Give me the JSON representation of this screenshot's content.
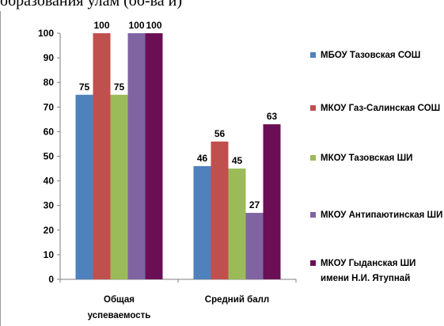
{
  "top_text": "образования                                    улам (об-ва и)",
  "chart_data": {
    "type": "bar",
    "categories": [
      "Общая успеваемость",
      "Средний балл"
    ],
    "category_lines": [
      [
        "Общая",
        "успеваемость"
      ],
      [
        "Средний балл"
      ]
    ],
    "series": [
      {
        "name": "МБОУ Тазовская СОШ",
        "values": [
          75,
          46
        ],
        "color": "#4f81bd"
      },
      {
        "name": "МКОУ Газ-Салинская СОШ",
        "values": [
          100,
          56
        ],
        "color": "#c0504d"
      },
      {
        "name": "МКОУ Тазовская ШИ",
        "values": [
          75,
          45
        ],
        "color": "#9bbb59"
      },
      {
        "name": "МКОУ Антипаютинская ШИ",
        "values": [
          100,
          27
        ],
        "color": "#8064a2"
      },
      {
        "name": "МКОУ Гыданская ШИ имени Н.И. Ятупнай",
        "values": [
          100,
          63
        ],
        "color": "#6b0f55"
      }
    ],
    "ylim": [
      0,
      100
    ],
    "y_ticks": [
      0,
      10,
      20,
      30,
      40,
      50,
      60,
      70,
      80,
      90,
      100
    ],
    "grid": false,
    "legend_position": "right"
  }
}
